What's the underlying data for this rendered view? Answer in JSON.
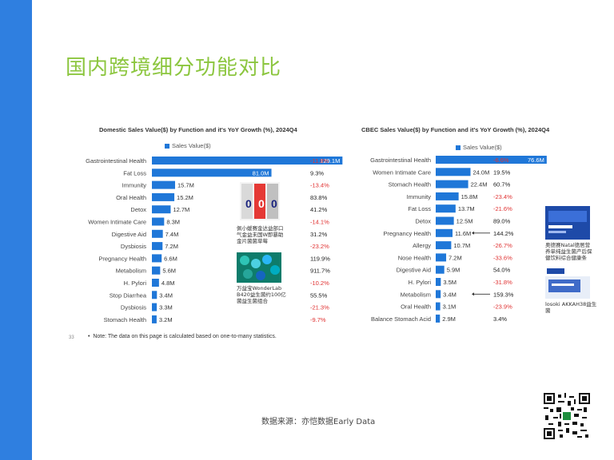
{
  "page": {
    "title": "国内跨境细分功能对比",
    "page_number": "33",
    "note": "Note: The data on this page is calculated based on one-to-many statistics.",
    "source": "数据来源：亦恺数据Early Data"
  },
  "colors": {
    "accent_bar": "#2f7fe0",
    "title_green": "#8cc63f",
    "bar_blue": "#1f77d8",
    "positive_text": "#222222",
    "negative_text": "#e03131"
  },
  "products": {
    "domestic_1": "佩小媛赛金达益部口气金益未国W即暴助金片菌菌草莓",
    "domestic_2": "万益宝WonderLab B420益生菌约100亿菌益生菌组合",
    "cbec_1": "奥德赛Natal德居营养单纯益生菌产后保健饮料综合健康条",
    "cbec_2": "losoki AKKAH38益生菌"
  },
  "chart_data": [
    {
      "type": "bar",
      "orientation": "horizontal",
      "title": "Domestic Sales Value($) by Function and it's YoY Growth (%), 2024Q4",
      "legend": [
        "Sales Value($)"
      ],
      "legend_position": "top-left",
      "grid": false,
      "xlim": [
        0,
        130
      ],
      "categories": [
        "Gastrointestinal Health",
        "Fat Loss",
        "Immunity",
        "Oral Health",
        "Detox",
        "Women Intimate Care",
        "Digestive Aid",
        "Dysbiosis",
        "Pregnancy Health",
        "Metabolism",
        "H. Pylori",
        "Stop Diarrhea",
        "Dysbiosis",
        "Stomach Health"
      ],
      "values": [
        129.1,
        81.0,
        15.7,
        15.2,
        12.7,
        8.3,
        7.4,
        7.2,
        6.6,
        5.6,
        4.8,
        3.4,
        3.3,
        3.2
      ],
      "value_labels": [
        "129.1M",
        "81.0M",
        "15.7M",
        "15.2M",
        "12.7M",
        "8.3M",
        "7.4M",
        "7.2M",
        "6.6M",
        "5.6M",
        "4.8M",
        "3.4M",
        "3.3M",
        "3.2M"
      ],
      "yoy_labels": [
        "-11.8%",
        "9.3%",
        "-13.4%",
        "83.8%",
        "41.2%",
        "-14.1%",
        "31.2%",
        "-23.2%",
        "119.9%",
        "911.7%",
        "-10.2%",
        "55.5%",
        "-21.3%",
        "-9.7%"
      ]
    },
    {
      "type": "bar",
      "orientation": "horizontal",
      "title": "CBEC Sales Value($) by Function and it's YoY Growth (%), 2024Q4",
      "legend": [
        "Sales Value($)"
      ],
      "legend_position": "top-left",
      "grid": false,
      "xlim": [
        0,
        80
      ],
      "categories": [
        "Gastrointestinal Health",
        "Women Intimate Care",
        "Stomach Health",
        "Immunity",
        "Fat Loss",
        "Detox",
        "Pregnancy Health",
        "Allergy",
        "Nose Health",
        "Digestive Aid",
        "H. Pylori",
        "Metabolism",
        "Oral Health",
        "Balance Stomach Acid"
      ],
      "values": [
        76.6,
        24.0,
        22.4,
        15.8,
        13.7,
        12.5,
        11.6,
        10.7,
        7.2,
        5.9,
        3.5,
        3.4,
        3.1,
        2.9
      ],
      "value_labels": [
        "76.6M",
        "24.0M",
        "22.4M",
        "15.8M",
        "13.7M",
        "12.5M",
        "11.6M",
        "10.7M",
        "7.2M",
        "5.9M",
        "3.5M",
        "3.4M",
        "3.1M",
        "2.9M"
      ],
      "yoy_labels": [
        "-6.6%",
        "19.5%",
        "60.7%",
        "-23.4%",
        "-21.6%",
        "89.0%",
        "144.2%",
        "-26.7%",
        "-33.6%",
        "54.0%",
        "-31.8%",
        "159.3%",
        "-23.9%",
        "3.4%"
      ]
    }
  ]
}
